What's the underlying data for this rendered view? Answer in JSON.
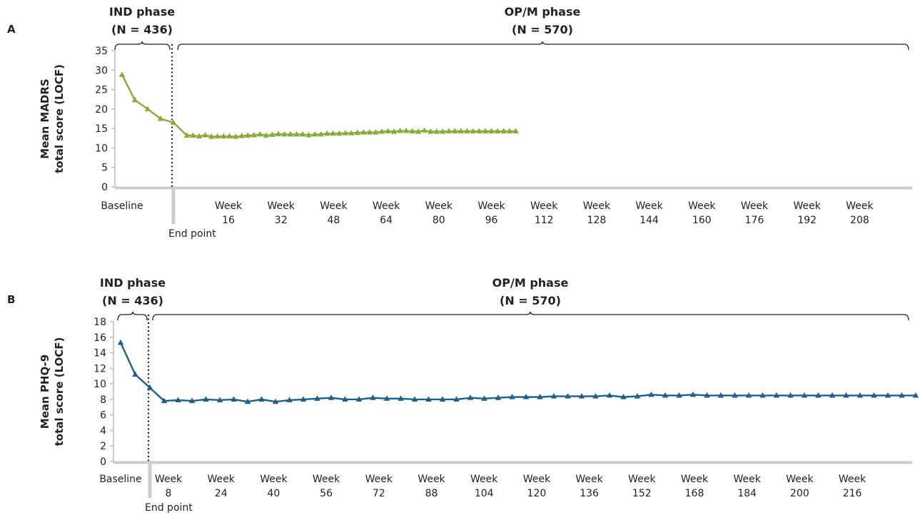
{
  "chart_data": [
    {
      "type": "line",
      "panel_label": "A",
      "ylabel_line1": "Mean MADRS",
      "ylabel_line2": "total score (LOCF)",
      "ylim": [
        0,
        35
      ],
      "yticks": [
        0,
        5,
        10,
        15,
        20,
        25,
        30,
        35
      ],
      "phase_left_line1": "IND phase",
      "phase_left_line2": "(N = 436)",
      "phase_right_line1": "OP/M phase",
      "phase_right_line2": "(N = 570)",
      "endpoint_label": "End point",
      "baseline_label": "Baseline",
      "week_word": "Week",
      "week_ticks": [
        "16",
        "32",
        "48",
        "64",
        "80",
        "96",
        "112",
        "128",
        "144",
        "160",
        "176",
        "192",
        "208"
      ],
      "color": "#8aaa3c",
      "ind_values": [
        28.8,
        22.3,
        20.0,
        17.5,
        16.5
      ],
      "opm_values": [
        13.2,
        13.2,
        13.0,
        13.3,
        12.9,
        13.0,
        13.0,
        13.0,
        12.9,
        13.1,
        13.2,
        13.3,
        13.5,
        13.2,
        13.4,
        13.6,
        13.5,
        13.5,
        13.5,
        13.5,
        13.3,
        13.5,
        13.5,
        13.7,
        13.7,
        13.7,
        13.8,
        13.8,
        13.9,
        14.0,
        14.0,
        14.0,
        14.2,
        14.3,
        14.2,
        14.4,
        14.4,
        14.3,
        14.2,
        14.5,
        14.2,
        14.2,
        14.2,
        14.3,
        14.3,
        14.3,
        14.3,
        14.3,
        14.3,
        14.3,
        14.3,
        14.3,
        14.3,
        14.3,
        14.3
      ]
    },
    {
      "type": "line",
      "panel_label": "B",
      "ylabel_line1": "Mean PHQ-9",
      "ylabel_line2": "total score (LOCF)",
      "ylim": [
        0,
        18
      ],
      "yticks": [
        0,
        2,
        4,
        6,
        8,
        10,
        12,
        14,
        16,
        18
      ],
      "phase_left_line1": "IND phase",
      "phase_left_line2": "(N = 436)",
      "phase_right_line1": "OP/M phase",
      "phase_right_line2": "(N = 570)",
      "endpoint_label": "End point",
      "baseline_label": "Baseline",
      "week_word": "Week",
      "week_ticks": [
        "8",
        "24",
        "40",
        "56",
        "72",
        "88",
        "104",
        "120",
        "136",
        "152",
        "168",
        "184",
        "200",
        "216"
      ],
      "color": "#1f5f8b",
      "ind_values": [
        15.3,
        11.2,
        9.5
      ],
      "opm_values": [
        7.8,
        7.9,
        7.8,
        8.0,
        7.9,
        8.0,
        7.7,
        8.0,
        7.7,
        7.9,
        8.0,
        8.1,
        8.2,
        8.0,
        8.0,
        8.2,
        8.1,
        8.1,
        8.0,
        8.0,
        8.0,
        8.0,
        8.2,
        8.1,
        8.2,
        8.3,
        8.3,
        8.3,
        8.4,
        8.4,
        8.4,
        8.4,
        8.5,
        8.3,
        8.4,
        8.6,
        8.5,
        8.5,
        8.6,
        8.5,
        8.5,
        8.5,
        8.5,
        8.5,
        8.5,
        8.5,
        8.5,
        8.5,
        8.5,
        8.5,
        8.5,
        8.5,
        8.5,
        8.5,
        8.5
      ]
    }
  ]
}
